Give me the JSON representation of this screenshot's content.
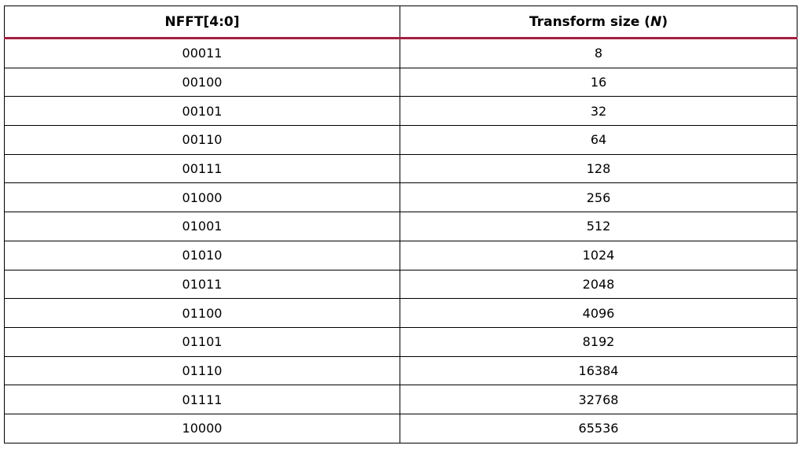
{
  "table": {
    "headers": {
      "col1": "NFFT[4:0]",
      "col2_prefix": "Transform size (",
      "col2_var": "N",
      "col2_suffix": ")"
    },
    "rows": [
      {
        "nfft": "00011",
        "size": "8"
      },
      {
        "nfft": "00100",
        "size": "16"
      },
      {
        "nfft": "00101",
        "size": "32"
      },
      {
        "nfft": "00110",
        "size": "64"
      },
      {
        "nfft": "00111",
        "size": "128"
      },
      {
        "nfft": "01000",
        "size": "256"
      },
      {
        "nfft": "01001",
        "size": "512"
      },
      {
        "nfft": "01010",
        "size": "1024"
      },
      {
        "nfft": "01011",
        "size": "2048"
      },
      {
        "nfft": "01100",
        "size": "4096"
      },
      {
        "nfft": "01101",
        "size": "8192"
      },
      {
        "nfft": "01110",
        "size": "16384"
      },
      {
        "nfft": "01111",
        "size": "32768"
      },
      {
        "nfft": "10000",
        "size": "65536"
      }
    ]
  },
  "colors": {
    "header_rule": "#a5203f",
    "border": "#000000"
  }
}
